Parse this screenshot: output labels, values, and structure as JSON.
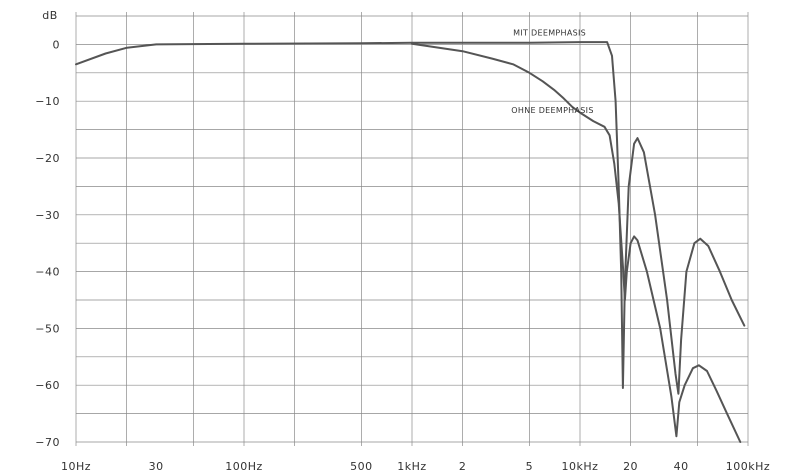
{
  "chart_data": {
    "type": "line",
    "title": "",
    "ylabel": "dB",
    "xscale": "log",
    "xlim": [
      10,
      100000
    ],
    "ylim": [
      -70,
      5
    ],
    "grid": true,
    "x_tick_labels": [
      {
        "x": 10,
        "label": "10Hz"
      },
      {
        "x": 30,
        "label": "30"
      },
      {
        "x": 100,
        "label": "100Hz"
      },
      {
        "x": 500,
        "label": "500"
      },
      {
        "x": 1000,
        "label": "1kHz"
      },
      {
        "x": 2000,
        "label": "2"
      },
      {
        "x": 5000,
        "label": "5"
      },
      {
        "x": 10000,
        "label": "10kHz"
      },
      {
        "x": 20000,
        "label": "20"
      },
      {
        "x": 40000,
        "label": "40"
      },
      {
        "x": 100000,
        "label": "100kHz"
      }
    ],
    "y_tick_labels": [
      {
        "y": 0,
        "label": "0"
      },
      {
        "y": -10,
        "label": "−10"
      },
      {
        "y": -20,
        "label": "−20"
      },
      {
        "y": -30,
        "label": "−30"
      },
      {
        "y": -40,
        "label": "−40"
      },
      {
        "y": -50,
        "label": "−50"
      },
      {
        "y": -60,
        "label": "−60"
      },
      {
        "y": -70,
        "label": "−70"
      }
    ],
    "series": [
      {
        "name": "MIT DEEMPHASIS",
        "points": [
          [
            10,
            -3.5
          ],
          [
            15,
            -1.6
          ],
          [
            20,
            -0.6
          ],
          [
            30,
            0
          ],
          [
            100,
            0.1
          ],
          [
            500,
            0.2
          ],
          [
            1000,
            0.3
          ],
          [
            2000,
            0.3
          ],
          [
            5000,
            0.3
          ],
          [
            10000,
            0.4
          ],
          [
            13000,
            0.4
          ],
          [
            14500,
            0.4
          ],
          [
            15500,
            -2
          ],
          [
            16300,
            -10
          ],
          [
            17000,
            -25
          ],
          [
            17600,
            -40
          ],
          [
            18000,
            -60.5
          ],
          [
            18500,
            -42
          ],
          [
            19500,
            -25
          ],
          [
            21000,
            -17.5
          ],
          [
            22000,
            -16.5
          ],
          [
            24000,
            -19
          ],
          [
            28000,
            -30
          ],
          [
            33000,
            -45
          ],
          [
            37000,
            -58
          ],
          [
            38500,
            -61.5
          ],
          [
            40000,
            -52
          ],
          [
            43000,
            -40
          ],
          [
            48000,
            -35
          ],
          [
            52000,
            -34.2
          ],
          [
            58000,
            -35.5
          ],
          [
            68000,
            -40
          ],
          [
            80000,
            -45
          ],
          [
            95000,
            -49.5
          ]
        ]
      },
      {
        "name": "OHNE DEEMPHASIS",
        "points": [
          [
            1000,
            0.1
          ],
          [
            2000,
            -1.2
          ],
          [
            3000,
            -2.5
          ],
          [
            4000,
            -3.5
          ],
          [
            5000,
            -5
          ],
          [
            6000,
            -6.5
          ],
          [
            7000,
            -8
          ],
          [
            8000,
            -9.5
          ],
          [
            9000,
            -11
          ],
          [
            10000,
            -12
          ],
          [
            12000,
            -13.5
          ],
          [
            14000,
            -14.5
          ],
          [
            15000,
            -16
          ],
          [
            16000,
            -21
          ],
          [
            17000,
            -28
          ],
          [
            18000,
            -39
          ],
          [
            18500,
            -45
          ],
          [
            19000,
            -40
          ],
          [
            20000,
            -35
          ],
          [
            21000,
            -33.8
          ],
          [
            22000,
            -34.5
          ],
          [
            25000,
            -40
          ],
          [
            30000,
            -50
          ],
          [
            35000,
            -62
          ],
          [
            37500,
            -69
          ],
          [
            39000,
            -63
          ],
          [
            42000,
            -60
          ],
          [
            47000,
            -57
          ],
          [
            51000,
            -56.5
          ],
          [
            57000,
            -57.5
          ],
          [
            65000,
            -61
          ],
          [
            75000,
            -65
          ],
          [
            90000,
            -70
          ]
        ]
      }
    ]
  }
}
